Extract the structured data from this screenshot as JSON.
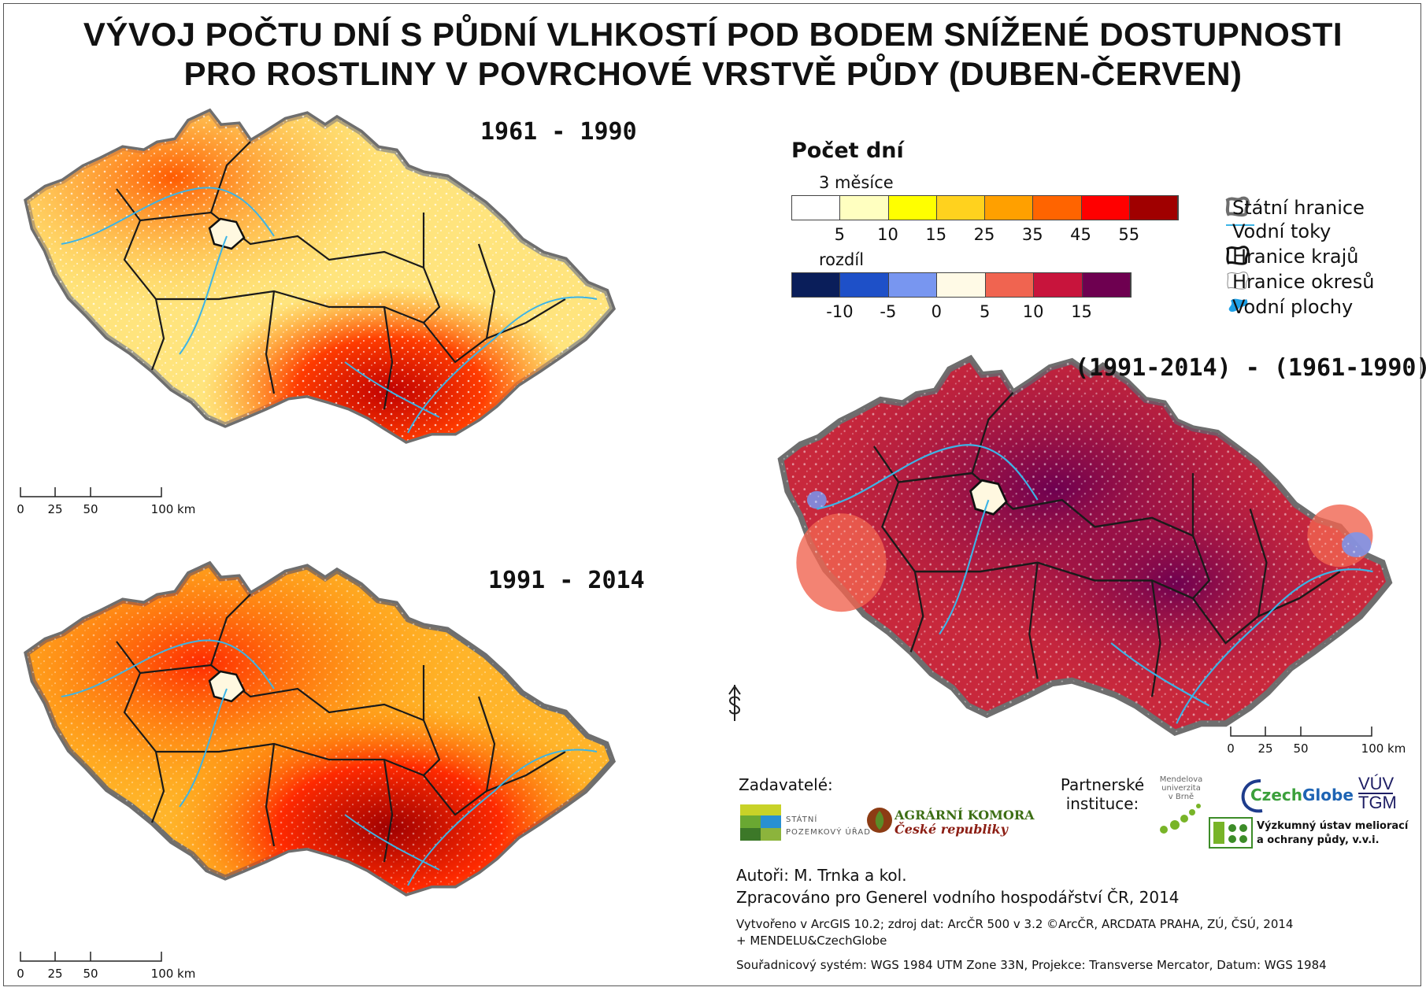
{
  "title": {
    "line1": "VÝVOJ POČTU DNÍ S PŮDNÍ VLHKOSTÍ POD BODEM SNÍŽENÉ DOSTUPNOSTI",
    "line2": "PRO ROSTLINY V POVRCHOVÉ VRSTVĚ PŮDY (DUBEN-ČERVEN)"
  },
  "maps": {
    "period1": "1961 - 1990",
    "period2": "1991 - 2014",
    "difference": "(1991-2014) - (1961-1990)"
  },
  "legend": {
    "title": "Počet dní",
    "ramp1_label": "3 měsíce",
    "ramp1_colors": [
      "#ffffff",
      "#ffffc0",
      "#ffff00",
      "#ffd21e",
      "#ffa000",
      "#ff6400",
      "#ff0000",
      "#a00000"
    ],
    "ramp1_ticks": [
      "5",
      "10",
      "15",
      "25",
      "35",
      "45",
      "55"
    ],
    "ramp2_label": "rozdíl",
    "ramp2_colors": [
      "#0a1e5a",
      "#1e50c8",
      "#7896f0",
      "#fffae6",
      "#f06450",
      "#c8143c",
      "#6e0050"
    ],
    "ramp2_ticks": [
      "-10",
      "-5",
      "0",
      "5",
      "10",
      "15"
    ],
    "items": [
      {
        "label": "Státní hranice",
        "icon": "state-border-icon"
      },
      {
        "label": "Vodní toky",
        "icon": "river-line-icon",
        "color": "#3cb4e6"
      },
      {
        "label": "Hranice krajů",
        "icon": "region-border-icon"
      },
      {
        "label": "Hranice okresů",
        "icon": "district-border-icon"
      },
      {
        "label": "Vodní plochy",
        "icon": "water-body-icon",
        "color": "#1ea0e6"
      }
    ]
  },
  "scalebar": {
    "labels": [
      "0",
      "25",
      "50",
      "100 km"
    ]
  },
  "credits": {
    "zadavatele": "Zadavatelé:",
    "partneri_line1": "Partnerské",
    "partneri_line2": "instituce:",
    "spu_line1": "STÁTNÍ",
    "spu_line2": "POZEMKOVÝ ÚŘAD",
    "ak_line1": "AGRÁRNÍ KOMORA",
    "ak_line2": "České republiky",
    "mendel_line1": "Mendelova",
    "mendel_line2": "univerzita",
    "mendel_line3": "v Brně",
    "czechglobe_a": "Czech",
    "czechglobe_b": "Globe",
    "vuv_line1": "VÚV",
    "vuv_line2": "TGM",
    "vumop_line1": "Výzkumný ústav meliorací",
    "vumop_line2": "a ochrany půdy, v.v.i.",
    "authors": "Autoři: M. Trnka a kol.",
    "prepared": "Zpracováno pro Generel vodního hospodářství ČR, 2014",
    "created": "Vytvořeno v ArcGIS 10.2; zdroj dat: ArcČR 500 v 3.2 ©ArcČR, ARCDATA PRAHA, ZÚ, ČSÚ, 2014",
    "created2": "+ MENDELU&CzechGlobe",
    "crs": "Souřadnicový systém: WGS 1984 UTM Zone 33N, Projekce: Transverse Mercator, Datum: WGS 1984"
  }
}
